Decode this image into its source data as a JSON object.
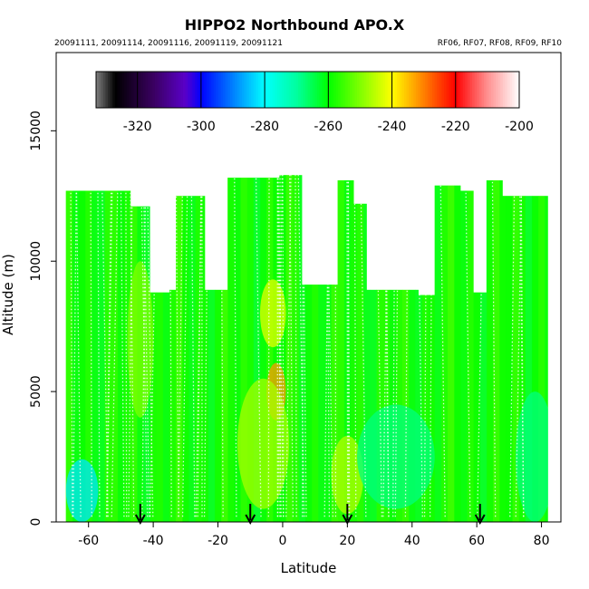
{
  "chart_data": {
    "type": "heatmap",
    "title": "HIPPO2 Northbound APO.X",
    "subtitle_left": "20091111, 20091114, 20091116, 20091119, 20091121",
    "subtitle_right": "RF06, RF07, RF08, RF09, RF10",
    "xlabel": "Latitude",
    "ylabel": "Altitude (m)",
    "xlim": [
      -70,
      86
    ],
    "ylim": [
      0,
      18000
    ],
    "xticks": [
      -60,
      -40,
      -20,
      0,
      20,
      40,
      60,
      80
    ],
    "yticks": [
      0,
      5000,
      10000,
      15000
    ],
    "colorbar": {
      "ticks": [
        -320,
        -300,
        -280,
        -260,
        -240,
        -220,
        -200
      ],
      "range": [
        -333,
        -200
      ],
      "stops": [
        {
          "v": -333,
          "c": "#808080"
        },
        {
          "v": -327,
          "c": "#000000"
        },
        {
          "v": -315,
          "c": "#3a0060"
        },
        {
          "v": -305,
          "c": "#5a00c8"
        },
        {
          "v": -300,
          "c": "#0000ff"
        },
        {
          "v": -290,
          "c": "#0080ff"
        },
        {
          "v": -280,
          "c": "#00ffff"
        },
        {
          "v": -270,
          "c": "#00ffa0"
        },
        {
          "v": -260,
          "c": "#00ff00"
        },
        {
          "v": -250,
          "c": "#80ff00"
        },
        {
          "v": -240,
          "c": "#ffff00"
        },
        {
          "v": -230,
          "c": "#ff8000"
        },
        {
          "v": -220,
          "c": "#ff0000"
        },
        {
          "v": -210,
          "c": "#ff9090"
        },
        {
          "v": -200,
          "c": "#ffffff"
        }
      ]
    },
    "coverage": [
      {
        "x0": -67,
        "x1": -47,
        "top": 12700
      },
      {
        "x0": -47,
        "x1": -41,
        "top": 12100
      },
      {
        "x0": -41,
        "x1": -35,
        "top": 8800
      },
      {
        "x0": -35,
        "x1": -33,
        "top": 8900
      },
      {
        "x0": -33,
        "x1": -24,
        "top": 12500
      },
      {
        "x0": -24,
        "x1": -17,
        "top": 8900
      },
      {
        "x0": -17,
        "x1": -1,
        "top": 13200
      },
      {
        "x0": -1,
        "x1": 6,
        "top": 13300
      },
      {
        "x0": 6,
        "x1": 17,
        "top": 9100
      },
      {
        "x0": 17,
        "x1": 22,
        "top": 13100
      },
      {
        "x0": 22,
        "x1": 26,
        "top": 12200
      },
      {
        "x0": 26,
        "x1": 42,
        "top": 8900
      },
      {
        "x0": 42,
        "x1": 47,
        "top": 8700
      },
      {
        "x0": 47,
        "x1": 55,
        "top": 12900
      },
      {
        "x0": 55,
        "x1": 59,
        "top": 12700
      },
      {
        "x0": 59,
        "x1": 63,
        "top": 8800
      },
      {
        "x0": 63,
        "x1": 68,
        "top": 13100
      },
      {
        "x0": 68,
        "x1": 82,
        "top": 12500
      }
    ],
    "anomalies": [
      {
        "x": -2,
        "y": 5000,
        "rx": 3,
        "ry": 1100,
        "value": -232
      },
      {
        "x": -3,
        "y": 8000,
        "rx": 4,
        "ry": 1300,
        "value": -242
      },
      {
        "x": -6,
        "y": 3000,
        "rx": 8,
        "ry": 2500,
        "value": -247
      },
      {
        "x": 20,
        "y": 1800,
        "rx": 5,
        "ry": 1500,
        "value": -246
      },
      {
        "x": -62,
        "y": 1200,
        "rx": 5,
        "ry": 1200,
        "value": -282
      },
      {
        "x": 35,
        "y": 2500,
        "rx": 12,
        "ry": 2000,
        "value": -268
      },
      {
        "x": 78,
        "y": 2500,
        "rx": 6,
        "ry": 2500,
        "value": -268
      },
      {
        "x": -44,
        "y": 7000,
        "rx": 4,
        "ry": 3000,
        "value": -250
      }
    ],
    "arrows_latitude": [
      -44,
      -10,
      20,
      61
    ]
  }
}
